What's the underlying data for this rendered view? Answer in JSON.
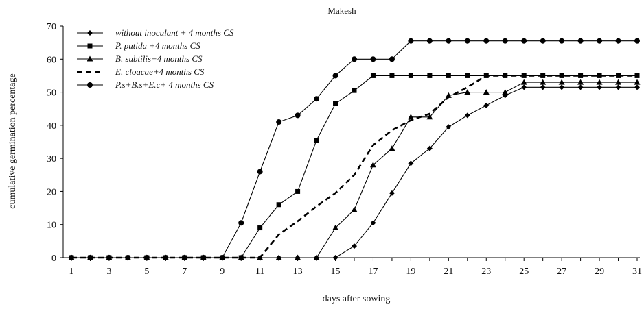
{
  "chart_data": {
    "type": "line",
    "title": "Makesh",
    "xlabel": "days after sowing",
    "ylabel": "cumulative germination percentage",
    "xlim": [
      1,
      31
    ],
    "ylim": [
      0,
      70
    ],
    "y_ticks": [
      0,
      10,
      20,
      30,
      40,
      50,
      60,
      70
    ],
    "x_ticks": [
      1,
      3,
      5,
      7,
      9,
      11,
      13,
      15,
      17,
      19,
      21,
      23,
      25,
      27,
      29,
      31
    ],
    "grid": false,
    "legend_position": "top-left",
    "x": [
      1,
      2,
      3,
      4,
      5,
      6,
      7,
      8,
      9,
      10,
      11,
      12,
      13,
      14,
      15,
      16,
      17,
      18,
      19,
      20,
      21,
      22,
      23,
      24,
      25,
      26,
      27,
      28,
      29,
      30,
      31
    ],
    "series": [
      {
        "name": "without inoculant + 4 months CS",
        "marker": "diamond",
        "dash": "solid",
        "values": [
          0,
          0,
          0,
          0,
          0,
          0,
          0,
          0,
          0,
          0,
          0,
          0,
          0,
          0,
          0,
          3.5,
          10.5,
          19.5,
          28.5,
          33,
          39.5,
          43,
          46,
          49,
          51.5,
          51.5,
          51.5,
          51.5,
          51.5,
          51.5,
          51.5
        ]
      },
      {
        "name": "P. putida +4 months CS",
        "marker": "square",
        "dash": "solid",
        "values": [
          0,
          0,
          0,
          0,
          0,
          0,
          0,
          0,
          0,
          0,
          9,
          16,
          20,
          35.5,
          46.5,
          50.5,
          55,
          55,
          55,
          55,
          55,
          55,
          55,
          55,
          55,
          55,
          55,
          55,
          55,
          55,
          55
        ]
      },
      {
        "name": "B. subtilis+4 months CS",
        "marker": "triangle",
        "dash": "solid",
        "values": [
          0,
          0,
          0,
          0,
          0,
          0,
          0,
          0,
          0,
          0,
          0,
          0,
          0,
          0,
          9,
          14.5,
          28,
          33,
          42.5,
          42.5,
          49,
          50,
          50,
          50,
          53,
          53,
          53,
          53,
          53,
          53,
          53
        ]
      },
      {
        "name": "E. cloacae+4 months CS",
        "marker": "none",
        "dash": "dashed",
        "values": [
          0,
          0,
          0,
          0,
          0,
          0,
          0,
          0,
          0,
          0,
          0,
          7,
          11,
          15.5,
          19.5,
          25,
          34,
          38.5,
          41.5,
          43.5,
          48.5,
          51.5,
          55,
          55,
          55,
          55,
          55,
          55,
          55,
          55,
          55
        ]
      },
      {
        "name": "P.s+B.s+E.c+ 4 months CS",
        "marker": "circle",
        "dash": "solid",
        "values": [
          0,
          0,
          0,
          0,
          0,
          0,
          0,
          0,
          0,
          10.5,
          26,
          41,
          43,
          48,
          55,
          60,
          60,
          60,
          65.5,
          65.5,
          65.5,
          65.5,
          65.5,
          65.5,
          65.5,
          65.5,
          65.5,
          65.5,
          65.5,
          65.5,
          65.5
        ]
      }
    ]
  }
}
